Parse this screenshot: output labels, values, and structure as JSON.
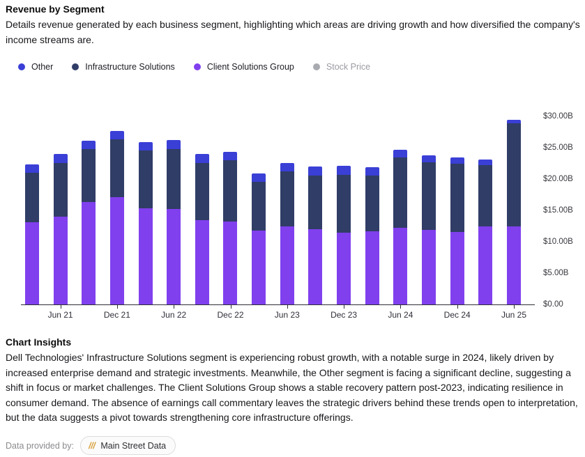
{
  "header": {
    "title": "Revenue by Segment",
    "description": "Details revenue generated by each business segment, highlighting which areas are driving growth and how diversified the company's income streams are."
  },
  "legend": {
    "items": [
      {
        "label": "Other",
        "color": "#3a3fd6",
        "enabled": true
      },
      {
        "label": "Infrastructure Solutions",
        "color": "#303d66",
        "enabled": true
      },
      {
        "label": "Client Solutions Group",
        "color": "#8040ee",
        "enabled": true
      },
      {
        "label": "Stock Price",
        "color": "#a8aab0",
        "enabled": false
      }
    ]
  },
  "chart_data": {
    "type": "bar",
    "stacked": true,
    "title": "Revenue by Segment",
    "num_bars": 18,
    "x_tick_labels": [
      "Jun 21",
      "Dec 21",
      "Jun 22",
      "Dec 22",
      "Jun 23",
      "Dec 23",
      "Jun 24",
      "Dec 24",
      "Jun 25"
    ],
    "labeled_bar_indices": [
      1,
      3,
      5,
      7,
      9,
      11,
      13,
      15,
      17
    ],
    "series": [
      {
        "name": "Client Solutions Group",
        "color": "#8040ee",
        "values": [
          13.1,
          14.0,
          16.3,
          17.1,
          15.3,
          15.2,
          13.5,
          13.2,
          11.8,
          12.5,
          12.0,
          11.5,
          11.7,
          12.2,
          11.9,
          11.6,
          12.4,
          12.5
        ]
      },
      {
        "name": "Infrastructure Solutions",
        "color": "#303d66",
        "values": [
          7.9,
          8.6,
          8.5,
          9.2,
          9.3,
          9.6,
          9.1,
          9.8,
          7.8,
          8.7,
          8.6,
          9.2,
          8.9,
          11.3,
          10.8,
          10.9,
          9.8,
          16.4
        ]
      },
      {
        "name": "Other",
        "color": "#3a3fd6",
        "values": [
          1.3,
          1.4,
          1.3,
          1.4,
          1.3,
          1.4,
          1.4,
          1.3,
          1.3,
          1.4,
          1.4,
          1.4,
          1.3,
          1.2,
          1.1,
          1.0,
          0.9,
          0.6
        ]
      }
    ],
    "y_axis": {
      "side": "right",
      "ticks": [
        {
          "label": "$30.00B",
          "value": 30
        },
        {
          "label": "$25.00B",
          "value": 25
        },
        {
          "label": "$20.00B",
          "value": 20
        },
        {
          "label": "$15.00B",
          "value": 15
        },
        {
          "label": "$10.00B",
          "value": 10
        },
        {
          "label": "$5.00B",
          "value": 5
        },
        {
          "label": "$0.00",
          "value": 0
        }
      ]
    },
    "ylim": [
      0,
      30
    ],
    "grid": false,
    "legend_position": "top"
  },
  "insights": {
    "heading": "Chart Insights",
    "body": "Dell Technologies' Infrastructure Solutions segment is experiencing robust growth, with a notable surge in 2024, likely driven by increased enterprise demand and strategic investments. Meanwhile, the Other segment is facing a significant decline, suggesting a shift in focus or market challenges. The Client Solutions Group shows a stable recovery pattern post-2023, indicating resilience in consumer demand. The absence of earnings call commentary leaves the strategic drivers behind these trends open to interpretation, but the data suggests a pivot towards strengthening core infrastructure offerings."
  },
  "footer": {
    "label": "Data provided by:",
    "badge": {
      "icon": "///",
      "text": "Main Street Data"
    }
  }
}
